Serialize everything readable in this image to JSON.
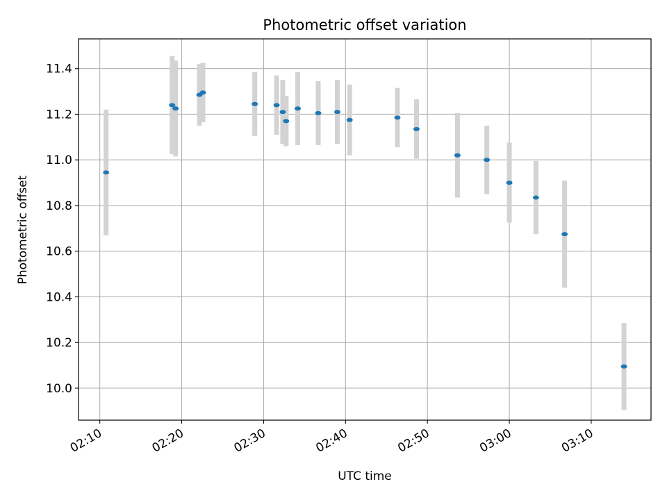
{
  "chart_data": {
    "type": "scatter",
    "title": "Photometric offset variation",
    "xlabel": "UTC time",
    "ylabel": "Photometric offset",
    "x_ticks": [
      "02:10",
      "02:20",
      "02:30",
      "02:40",
      "02:50",
      "03:00",
      "03:10"
    ],
    "x_tick_minutes": [
      130,
      140,
      150,
      160,
      170,
      180,
      190
    ],
    "xlim_minutes": [
      127.4,
      197.3
    ],
    "y_ticks": [
      "10.0",
      "10.2",
      "10.4",
      "10.6",
      "10.8",
      "11.0",
      "11.2",
      "11.4"
    ],
    "ylim": [
      9.86,
      11.53
    ],
    "grid": true,
    "marker_color": "#1f77b4",
    "errorbar_color": "#d3d3d3",
    "points": [
      {
        "t": "02:10:46",
        "y": 10.945,
        "err": 0.275
      },
      {
        "t": "02:18:50",
        "y": 11.24,
        "err": 0.215
      },
      {
        "t": "02:19:15",
        "y": 11.225,
        "err": 0.21
      },
      {
        "t": "02:22:10",
        "y": 11.285,
        "err": 0.135
      },
      {
        "t": "02:22:35",
        "y": 11.295,
        "err": 0.13
      },
      {
        "t": "02:28:55",
        "y": 11.245,
        "err": 0.14
      },
      {
        "t": "02:31:35",
        "y": 11.24,
        "err": 0.13
      },
      {
        "t": "02:32:20",
        "y": 11.21,
        "err": 0.14
      },
      {
        "t": "02:32:45",
        "y": 11.17,
        "err": 0.11
      },
      {
        "t": "02:34:10",
        "y": 11.225,
        "err": 0.16
      },
      {
        "t": "02:36:40",
        "y": 11.205,
        "err": 0.14
      },
      {
        "t": "02:39:00",
        "y": 11.21,
        "err": 0.14
      },
      {
        "t": "02:40:30",
        "y": 11.175,
        "err": 0.155
      },
      {
        "t": "02:46:20",
        "y": 11.185,
        "err": 0.13
      },
      {
        "t": "02:48:40",
        "y": 11.135,
        "err": 0.13
      },
      {
        "t": "02:53:40",
        "y": 11.02,
        "err": 0.185
      },
      {
        "t": "02:57:15",
        "y": 11.0,
        "err": 0.15
      },
      {
        "t": "03:00:00",
        "y": 10.9,
        "err": 0.175
      },
      {
        "t": "03:03:15",
        "y": 10.835,
        "err": 0.16
      },
      {
        "t": "03:06:45",
        "y": 10.675,
        "err": 0.235
      },
      {
        "t": "03:14:00",
        "y": 10.095,
        "err": 0.19
      }
    ]
  }
}
